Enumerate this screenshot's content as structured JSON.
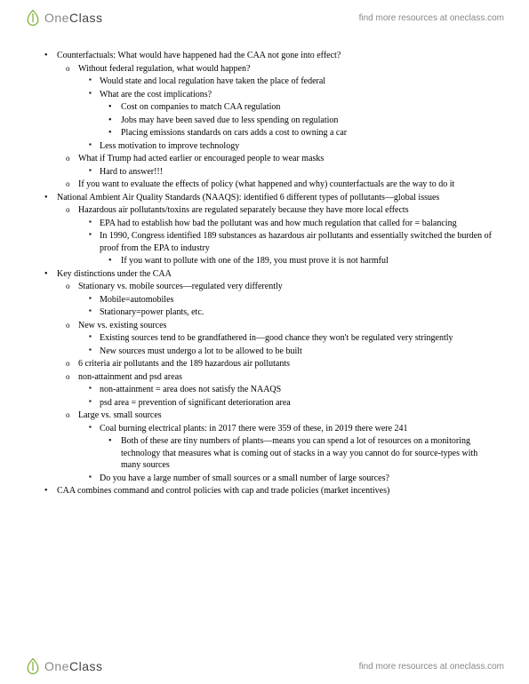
{
  "brand": {
    "one": "One",
    "class": "Class",
    "tagline": "find more resources at oneclass.com"
  },
  "logo_color": "#7fb135",
  "text_color": "#000000",
  "background_color": "#ffffff",
  "font_family": "Georgia, 'Times New Roman', serif",
  "font_size_pt": 10,
  "items": [
    {
      "lvl": 0,
      "m": "bullet",
      "t": "Counterfactuals: What would have happened had the CAA not gone into effect?"
    },
    {
      "lvl": 1,
      "m": "circ",
      "t": "Without federal regulation, what would happen?"
    },
    {
      "lvl": 2,
      "m": "square",
      "t": "Would state and local regulation have taken the place of federal"
    },
    {
      "lvl": 2,
      "m": "square",
      "t": "What are the cost implications?"
    },
    {
      "lvl": 3,
      "m": "bullet",
      "t": "Cost on companies to match CAA regulation"
    },
    {
      "lvl": 3,
      "m": "bullet",
      "t": "Jobs may have been saved due to less spending on regulation"
    },
    {
      "lvl": 3,
      "m": "bullet",
      "t": "Placing emissions standards on cars adds a cost to owning a car"
    },
    {
      "lvl": 2,
      "m": "square",
      "t": "Less motivation to improve technology"
    },
    {
      "lvl": 1,
      "m": "circ",
      "t": "What if Trump had acted earlier or encouraged people to wear masks"
    },
    {
      "lvl": 2,
      "m": "square",
      "t": "Hard to answer!!!"
    },
    {
      "lvl": 1,
      "m": "circ",
      "t": "If you want to evaluate the effects of policy (what happened and why) counterfactuals are the way to do it"
    },
    {
      "lvl": 0,
      "m": "bullet",
      "t": "National Ambient Air Quality Standards (NAAQS): identified 6 different types of pollutants—global issues"
    },
    {
      "lvl": 1,
      "m": "circ",
      "t": "Hazardous air pollutants/toxins are regulated separately because they have more local effects"
    },
    {
      "lvl": 2,
      "m": "square",
      "t": "EPA had to establish how bad the pollutant was and how much regulation that called for = balancing"
    },
    {
      "lvl": 2,
      "m": "square",
      "t": "In 1990, Congress identified 189 substances as hazardous air pollutants and essentially switched the burden of proof from the EPA to industry"
    },
    {
      "lvl": 3,
      "m": "bullet",
      "t": "If you want to pollute with one of the 189, you must prove it is not harmful"
    },
    {
      "lvl": 0,
      "m": "bullet",
      "t": "Key distinctions under the CAA"
    },
    {
      "lvl": 1,
      "m": "circ",
      "t": "Stationary vs. mobile sources—regulated very differently"
    },
    {
      "lvl": 2,
      "m": "square",
      "t": "Mobile=automobiles"
    },
    {
      "lvl": 2,
      "m": "square",
      "t": "Stationary=power plants, etc."
    },
    {
      "lvl": 1,
      "m": "circ",
      "t": "New vs. existing sources"
    },
    {
      "lvl": 2,
      "m": "square",
      "t": "Existing sources tend to be grandfathered in—good chance they won't be regulated very stringently"
    },
    {
      "lvl": 2,
      "m": "square",
      "t": "New sources must undergo a lot to be allowed to be built"
    },
    {
      "lvl": 1,
      "m": "circ",
      "t": "6 criteria air pollutants and the 189 hazardous air pollutants"
    },
    {
      "lvl": 1,
      "m": "circ",
      "t": "non-attainment and psd areas"
    },
    {
      "lvl": 2,
      "m": "square",
      "t": "non-attainment = area does not satisfy the NAAQS"
    },
    {
      "lvl": 2,
      "m": "square",
      "t": "psd area = prevention of significant deterioration area"
    },
    {
      "lvl": 1,
      "m": "circ",
      "t": "Large vs. small sources"
    },
    {
      "lvl": 2,
      "m": "square",
      "t": "Coal burning electrical plants: in 2017 there were 359 of these, in 2019 there were 241"
    },
    {
      "lvl": 3,
      "m": "bullet",
      "t": "Both of these are tiny numbers of plants—means you can spend a lot of resources on a monitoring technology that measures what is coming out of stacks in a way you cannot do for source-types with many sources"
    },
    {
      "lvl": 2,
      "m": "square",
      "t": "Do you have a large number of small sources or a small number of large sources?"
    },
    {
      "lvl": 0,
      "m": "bullet",
      "t": "CAA combines command and control policies with cap and trade policies (market incentives)"
    }
  ]
}
